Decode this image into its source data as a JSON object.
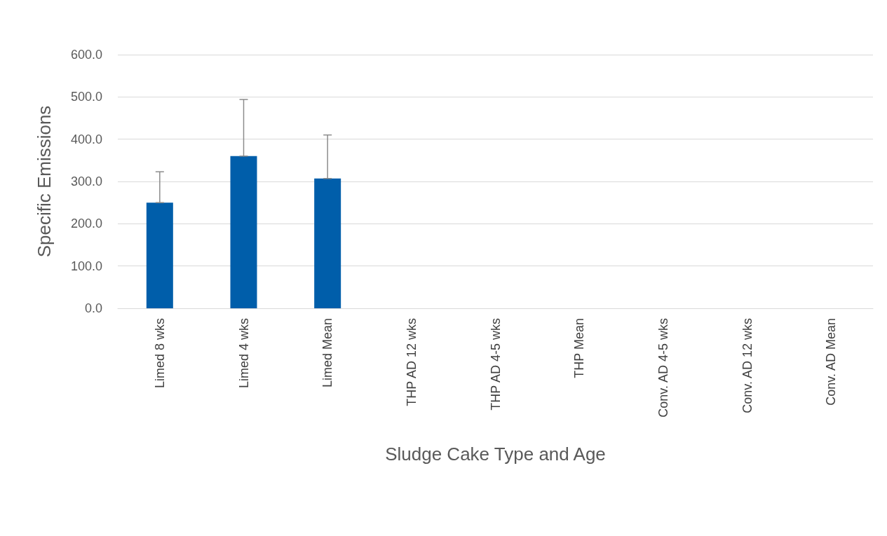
{
  "chart_data": {
    "type": "bar",
    "xlabel": "Sludge Cake Type and Age",
    "ylabel": "Specific Emissions",
    "categories": [
      "Limed 8 wks",
      "Limed 4 wks",
      "Limed Mean",
      "THP AD 12 wks",
      "THP AD 4-5 wks",
      "THP Mean",
      "Conv. AD 4-5 wks",
      "Conv. AD 12 wks",
      "Conv. AD Mean"
    ],
    "values": [
      250,
      360,
      307,
      null,
      null,
      null,
      null,
      null,
      null
    ],
    "errors": [
      [
        250,
        323
      ],
      [
        360,
        494
      ],
      [
        307,
        410
      ],
      null,
      null,
      null,
      null,
      null,
      null
    ],
    "color": "#005eaa",
    "ylim": [
      0,
      600
    ],
    "yticks": [
      {
        "value": 0,
        "label": "0.0"
      },
      {
        "value": 100,
        "label": "100.0"
      },
      {
        "value": 200,
        "label": "200.0"
      },
      {
        "value": 300,
        "label": "300.0"
      },
      {
        "value": 400,
        "label": "400.0"
      },
      {
        "value": 500,
        "label": "500.0"
      },
      {
        "value": 600,
        "label": "600.0"
      }
    ],
    "grid": "y"
  }
}
